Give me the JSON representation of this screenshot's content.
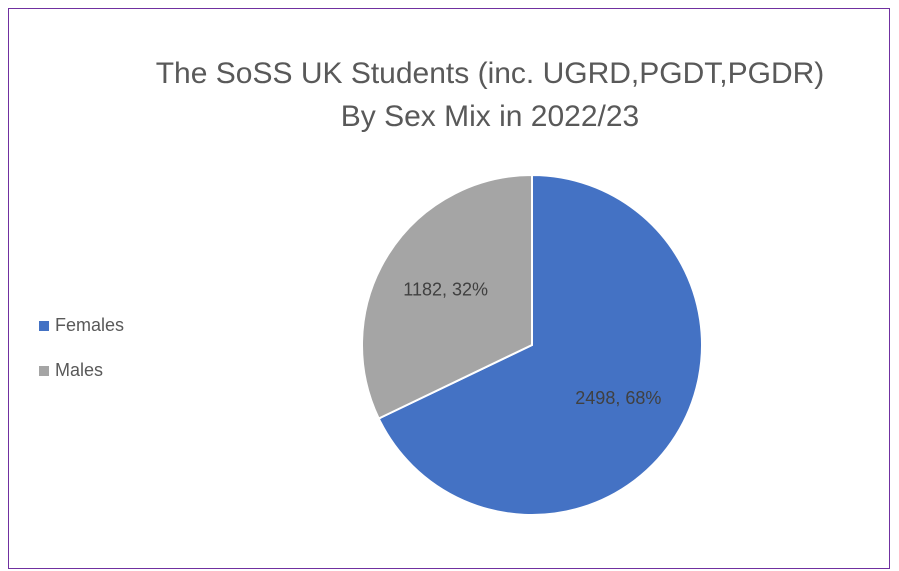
{
  "chart_data": {
    "type": "pie",
    "title": [
      "The SoSS UK Students (inc. UGRD,PGDT,PGDR)",
      "By Sex Mix in 2022/23"
    ],
    "categories": [
      "Females",
      "Males"
    ],
    "values": [
      2498,
      1182
    ],
    "value_labels": [
      "2498, 68%",
      "1182, 32%"
    ],
    "colors": [
      "#4472c4",
      "#a5a5a5"
    ],
    "legend": "left"
  }
}
